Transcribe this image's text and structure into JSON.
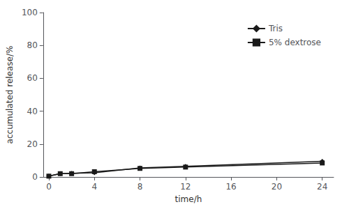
{
  "chart_data": {
    "type": "line",
    "x": [
      0,
      1,
      2,
      4,
      8,
      12,
      24
    ],
    "series": [
      {
        "name": "Tris",
        "color": "#1a1a1a",
        "marker": "diamond",
        "values": [
          0.5,
          2.0,
          2.2,
          2.5,
          5.5,
          6.5,
          9.5
        ]
      },
      {
        "name": "5% dextrose",
        "color": "#1a1a1a",
        "marker": "square",
        "values": [
          0.5,
          2.0,
          2.0,
          3.2,
          5.2,
          6.0,
          8.5
        ]
      }
    ],
    "xlabel": "time/h",
    "ylabel": "accumulated release/%",
    "xlim": [
      -0.5,
      25
    ],
    "ylim": [
      0,
      100
    ],
    "xticks": [
      0,
      4,
      8,
      12,
      16,
      20,
      24
    ],
    "yticks": [
      0,
      20,
      40,
      60,
      80,
      100
    ],
    "grid": false,
    "legend": "right"
  }
}
